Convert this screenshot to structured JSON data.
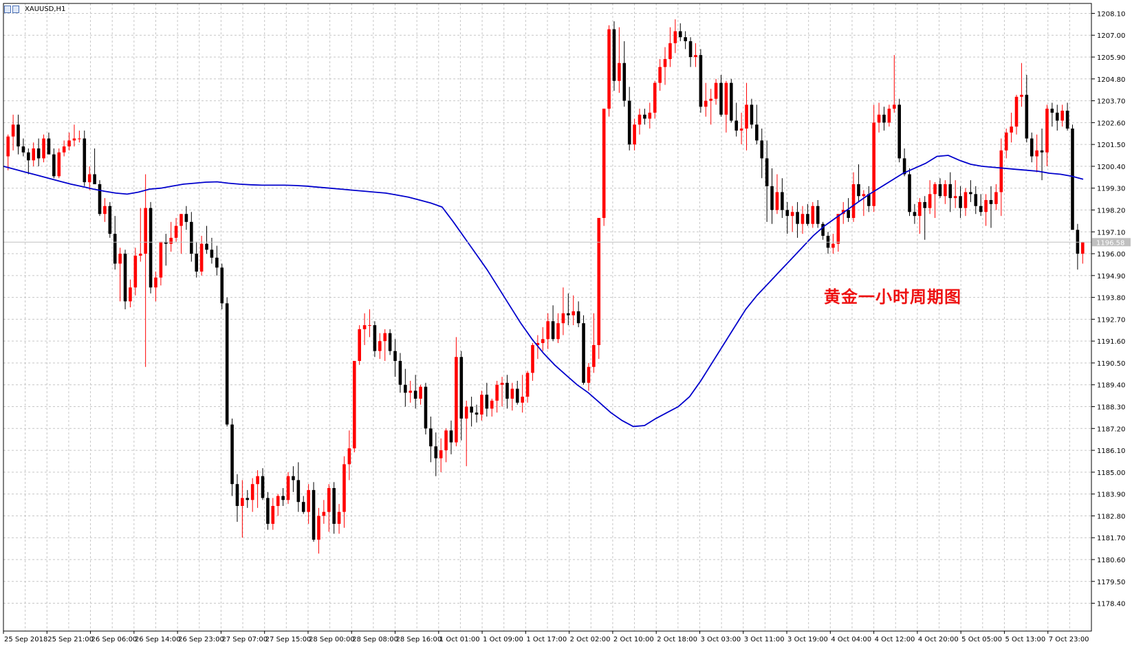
{
  "window": {
    "title": "XAUUSD,H1"
  },
  "annotation": "黄金一小时周期图",
  "colors": {
    "bull": "#ff0000",
    "bear": "#000000",
    "ma": "#0000cc",
    "grid": "#c6c6c6",
    "price_tag_bg": "#c0c0c0"
  },
  "chart_data": {
    "type": "candlestick",
    "symbol": "XAUUSD",
    "timeframe": "H1",
    "ylim": [
      1177.0,
      1208.6
    ],
    "yticks": [
      "1208.10",
      "1207.00",
      "1205.90",
      "1204.80",
      "1203.70",
      "1202.60",
      "1201.50",
      "1200.40",
      "1199.30",
      "1198.20",
      "1197.10",
      "1196.00",
      "1194.90",
      "1193.80",
      "1192.70",
      "1191.60",
      "1190.50",
      "1189.40",
      "1188.30",
      "1187.20",
      "1186.10",
      "1185.00",
      "1183.90",
      "1182.80",
      "1181.70",
      "1180.60",
      "1179.50",
      "1178.40"
    ],
    "xticks": [
      "25 Sep 2018",
      "25 Sep 21:00",
      "26 Sep 06:00",
      "26 Sep 14:00",
      "26 Sep 23:00",
      "27 Sep 07:00",
      "27 Sep 15:00",
      "28 Sep 00:00",
      "28 Sep 08:00",
      "28 Sep 16:00",
      "1 Oct 01:00",
      "1 Oct 09:00",
      "1 Oct 17:00",
      "2 Oct 02:00",
      "2 Oct 10:00",
      "2 Oct 18:00",
      "3 Oct 03:00",
      "3 Oct 11:00",
      "3 Oct 19:00",
      "4 Oct 04:00",
      "4 Oct 12:00",
      "4 Oct 20:00",
      "5 Oct 05:00",
      "5 Oct 13:00",
      "7 Oct 23:00"
    ],
    "current_price": "1196.58",
    "current_price_value": 1196.58,
    "candles_ohlc": [
      [
        1200.9,
        1202.0,
        1200.2,
        1201.9
      ],
      [
        1201.9,
        1203.0,
        1201.2,
        1202.5
      ],
      [
        1202.5,
        1203.0,
        1201.0,
        1201.4
      ],
      [
        1201.4,
        1201.8,
        1200.9,
        1201.1
      ],
      [
        1201.1,
        1201.3,
        1200.0,
        1200.7
      ],
      [
        1200.7,
        1201.6,
        1200.4,
        1201.3
      ],
      [
        1201.3,
        1201.8,
        1200.4,
        1200.8
      ],
      [
        1200.8,
        1202.0,
        1200.6,
        1201.8
      ],
      [
        1201.8,
        1202.1,
        1201.0,
        1201.0
      ],
      [
        1201.0,
        1201.3,
        1199.8,
        1199.9
      ],
      [
        1199.9,
        1201.3,
        1199.8,
        1201.1
      ],
      [
        1201.1,
        1201.7,
        1200.9,
        1201.4
      ],
      [
        1201.4,
        1202.1,
        1201.2,
        1201.7
      ],
      [
        1201.7,
        1202.5,
        1201.4,
        1201.8
      ],
      [
        1201.8,
        1202.2,
        1201.6,
        1201.8
      ],
      [
        1201.8,
        1202.2,
        1199.4,
        1199.6
      ],
      [
        1199.6,
        1200.4,
        1199.2,
        1200.0
      ],
      [
        1200.0,
        1201.3,
        1199.6,
        1199.5
      ],
      [
        1199.5,
        1199.7,
        1197.9,
        1198.0
      ],
      [
        1198.0,
        1198.8,
        1197.6,
        1198.4
      ],
      [
        1198.4,
        1198.6,
        1196.8,
        1197.0
      ],
      [
        1197.0,
        1197.9,
        1195.2,
        1195.5
      ],
      [
        1195.5,
        1196.3,
        1193.6,
        1196.0
      ],
      [
        1196.0,
        1196.2,
        1193.2,
        1193.6
      ],
      [
        1193.6,
        1194.7,
        1193.3,
        1194.3
      ],
      [
        1194.3,
        1196.3,
        1193.9,
        1195.9
      ],
      [
        1195.9,
        1198.3,
        1195.6,
        1196.0
      ],
      [
        1196.0,
        1200.0,
        1190.3,
        1198.3
      ],
      [
        1198.3,
        1198.6,
        1194.0,
        1194.3
      ],
      [
        1194.3,
        1195.1,
        1193.6,
        1194.8
      ],
      [
        1194.8,
        1196.6,
        1194.4,
        1196.6
      ],
      [
        1196.6,
        1197.0,
        1195.4,
        1196.5
      ],
      [
        1196.5,
        1197.6,
        1196.1,
        1196.8
      ],
      [
        1196.8,
        1197.8,
        1196.6,
        1197.4
      ],
      [
        1197.4,
        1198.0,
        1196.0,
        1198.0
      ],
      [
        1198.0,
        1198.4,
        1197.2,
        1197.6
      ],
      [
        1197.6,
        1198.1,
        1195.6,
        1196.0
      ],
      [
        1196.0,
        1196.6,
        1194.8,
        1195.1
      ],
      [
        1195.1,
        1196.9,
        1194.9,
        1196.5
      ],
      [
        1196.5,
        1197.4,
        1196.0,
        1196.2
      ],
      [
        1196.2,
        1196.8,
        1195.5,
        1195.8
      ],
      [
        1195.8,
        1196.4,
        1194.9,
        1195.3
      ],
      [
        1195.3,
        1195.5,
        1193.2,
        1193.5
      ],
      [
        1193.5,
        1193.8,
        1187.3,
        1187.4
      ],
      [
        1187.4,
        1187.7,
        1183.8,
        1184.4
      ],
      [
        1184.4,
        1184.9,
        1182.5,
        1183.3
      ],
      [
        1183.3,
        1184.6,
        1181.7,
        1183.7
      ],
      [
        1183.7,
        1184.1,
        1183.2,
        1183.6
      ],
      [
        1183.6,
        1184.7,
        1183.0,
        1184.4
      ],
      [
        1184.4,
        1185.1,
        1183.2,
        1184.8
      ],
      [
        1184.8,
        1185.2,
        1183.6,
        1183.7
      ],
      [
        1183.7,
        1184.0,
        1182.1,
        1182.4
      ],
      [
        1182.4,
        1183.7,
        1182.1,
        1183.3
      ],
      [
        1183.3,
        1183.9,
        1182.8,
        1183.8
      ],
      [
        1183.8,
        1184.2,
        1183.3,
        1183.6
      ],
      [
        1183.6,
        1185.0,
        1183.4,
        1184.8
      ],
      [
        1184.8,
        1185.3,
        1184.0,
        1184.6
      ],
      [
        1184.6,
        1185.5,
        1183.0,
        1183.5
      ],
      [
        1183.5,
        1183.8,
        1182.9,
        1183.0
      ],
      [
        1183.0,
        1184.4,
        1182.4,
        1184.1
      ],
      [
        1184.1,
        1184.5,
        1181.5,
        1181.6
      ],
      [
        1181.6,
        1183.2,
        1180.9,
        1182.8
      ],
      [
        1182.8,
        1183.6,
        1182.4,
        1183.0
      ],
      [
        1183.0,
        1184.4,
        1182.0,
        1184.2
      ],
      [
        1184.2,
        1184.5,
        1181.9,
        1182.4
      ],
      [
        1182.4,
        1183.4,
        1181.9,
        1183.0
      ],
      [
        1183.0,
        1185.8,
        1182.2,
        1185.4
      ],
      [
        1185.4,
        1187.1,
        1184.6,
        1186.2
      ],
      [
        1186.2,
        1190.6,
        1186.0,
        1190.6
      ],
      [
        1190.6,
        1192.4,
        1190.4,
        1192.2
      ],
      [
        1192.2,
        1193.0,
        1191.4,
        1192.4
      ],
      [
        1192.4,
        1193.2,
        1191.8,
        1192.4
      ],
      [
        1192.4,
        1192.6,
        1190.8,
        1191.1
      ],
      [
        1191.1,
        1192.0,
        1190.7,
        1191.6
      ],
      [
        1191.6,
        1192.2,
        1190.6,
        1192.0
      ],
      [
        1192.0,
        1192.2,
        1190.9,
        1191.1
      ],
      [
        1191.1,
        1191.7,
        1189.8,
        1190.6
      ],
      [
        1190.6,
        1191.0,
        1189.0,
        1189.4
      ],
      [
        1189.4,
        1190.2,
        1188.3,
        1189.0
      ],
      [
        1189.0,
        1189.6,
        1188.5,
        1189.1
      ],
      [
        1189.1,
        1189.9,
        1188.2,
        1188.7
      ],
      [
        1188.7,
        1189.4,
        1188.4,
        1189.3
      ],
      [
        1189.3,
        1189.5,
        1186.9,
        1187.2
      ],
      [
        1187.2,
        1187.8,
        1185.5,
        1186.3
      ],
      [
        1186.3,
        1187.0,
        1184.8,
        1185.7
      ],
      [
        1185.7,
        1186.7,
        1185.0,
        1186.1
      ],
      [
        1186.1,
        1187.2,
        1185.5,
        1187.1
      ],
      [
        1187.1,
        1187.6,
        1185.9,
        1186.5
      ],
      [
        1186.5,
        1191.8,
        1186.3,
        1190.8
      ],
      [
        1190.8,
        1191.1,
        1186.6,
        1187.7
      ],
      [
        1187.7,
        1188.6,
        1185.3,
        1188.3
      ],
      [
        1188.3,
        1188.8,
        1187.3,
        1188.0
      ],
      [
        1188.0,
        1188.4,
        1187.5,
        1187.9
      ],
      [
        1187.9,
        1189.1,
        1187.6,
        1188.9
      ],
      [
        1188.9,
        1189.5,
        1187.8,
        1188.2
      ],
      [
        1188.2,
        1188.7,
        1187.8,
        1188.6
      ],
      [
        1188.6,
        1189.6,
        1188.0,
        1189.4
      ],
      [
        1189.4,
        1189.8,
        1188.3,
        1189.5
      ],
      [
        1189.5,
        1189.9,
        1188.2,
        1188.7
      ],
      [
        1188.7,
        1189.5,
        1188.1,
        1189.2
      ],
      [
        1189.2,
        1189.6,
        1188.4,
        1188.5
      ],
      [
        1188.5,
        1189.9,
        1188.0,
        1188.8
      ],
      [
        1188.8,
        1190.1,
        1188.5,
        1190.0
      ],
      [
        1190.0,
        1191.5,
        1189.6,
        1191.4
      ],
      [
        1191.4,
        1191.9,
        1190.7,
        1191.5
      ],
      [
        1191.5,
        1192.3,
        1191.1,
        1191.7
      ],
      [
        1191.7,
        1193.0,
        1191.2,
        1192.6
      ],
      [
        1192.6,
        1193.4,
        1191.6,
        1191.7
      ],
      [
        1191.7,
        1193.0,
        1191.5,
        1192.5
      ],
      [
        1192.5,
        1194.3,
        1191.9,
        1193.0
      ],
      [
        1193.0,
        1194.0,
        1192.4,
        1192.9
      ],
      [
        1192.9,
        1193.9,
        1192.4,
        1193.1
      ],
      [
        1193.1,
        1193.6,
        1192.3,
        1192.5
      ],
      [
        1192.5,
        1192.9,
        1189.4,
        1189.5
      ],
      [
        1189.5,
        1190.5,
        1189.1,
        1190.3
      ],
      [
        1190.3,
        1193.0,
        1190.0,
        1191.4
      ],
      [
        1191.4,
        1197.8,
        1190.7,
        1197.8
      ],
      [
        1197.8,
        1203.3,
        1197.4,
        1203.3
      ],
      [
        1203.3,
        1207.5,
        1202.9,
        1207.3
      ],
      [
        1207.3,
        1207.7,
        1204.2,
        1204.7
      ],
      [
        1204.7,
        1207.4,
        1204.1,
        1205.6
      ],
      [
        1205.6,
        1206.7,
        1203.4,
        1203.7
      ],
      [
        1203.7,
        1204.4,
        1201.2,
        1201.5
      ],
      [
        1201.5,
        1202.8,
        1201.2,
        1202.5
      ],
      [
        1202.5,
        1203.3,
        1202.0,
        1203.0
      ],
      [
        1203.0,
        1203.3,
        1202.5,
        1202.8
      ],
      [
        1202.8,
        1203.6,
        1202.3,
        1203.1
      ],
      [
        1203.1,
        1204.7,
        1202.8,
        1204.6
      ],
      [
        1204.6,
        1205.8,
        1204.2,
        1205.4
      ],
      [
        1205.4,
        1206.4,
        1204.5,
        1205.8
      ],
      [
        1205.8,
        1207.4,
        1205.4,
        1206.6
      ],
      [
        1206.6,
        1207.8,
        1206.1,
        1207.2
      ],
      [
        1207.2,
        1207.6,
        1206.7,
        1206.9
      ],
      [
        1206.9,
        1207.2,
        1206.3,
        1206.7
      ],
      [
        1206.7,
        1206.9,
        1205.4,
        1205.9
      ],
      [
        1205.9,
        1206.6,
        1205.4,
        1206.0
      ],
      [
        1206.0,
        1206.3,
        1203.1,
        1203.4
      ],
      [
        1203.4,
        1204.6,
        1202.9,
        1203.7
      ],
      [
        1203.7,
        1204.3,
        1202.5,
        1203.8
      ],
      [
        1203.8,
        1204.8,
        1203.5,
        1204.6
      ],
      [
        1204.6,
        1205.0,
        1202.9,
        1203.0
      ],
      [
        1203.0,
        1204.7,
        1202.1,
        1204.6
      ],
      [
        1204.6,
        1204.8,
        1202.6,
        1202.7
      ],
      [
        1202.7,
        1203.6,
        1201.9,
        1202.2
      ],
      [
        1202.2,
        1203.1,
        1201.5,
        1202.3
      ],
      [
        1202.3,
        1204.6,
        1201.2,
        1203.5
      ],
      [
        1203.5,
        1203.8,
        1202.3,
        1202.5
      ],
      [
        1202.5,
        1203.5,
        1201.5,
        1201.7
      ],
      [
        1201.7,
        1202.3,
        1199.8,
        1200.8
      ],
      [
        1200.8,
        1201.7,
        1197.6,
        1199.4
      ],
      [
        1199.4,
        1200.3,
        1197.5,
        1198.2
      ],
      [
        1198.2,
        1200.0,
        1198.0,
        1199.1
      ],
      [
        1199.1,
        1199.8,
        1197.8,
        1198.2
      ],
      [
        1198.2,
        1198.6,
        1197.0,
        1197.9
      ],
      [
        1197.9,
        1198.4,
        1197.1,
        1198.1
      ],
      [
        1198.1,
        1198.6,
        1196.8,
        1197.5
      ],
      [
        1197.5,
        1198.4,
        1197.0,
        1198.0
      ],
      [
        1198.0,
        1198.5,
        1197.4,
        1197.5
      ],
      [
        1197.5,
        1198.6,
        1197.3,
        1198.4
      ],
      [
        1198.4,
        1198.7,
        1197.3,
        1197.5
      ],
      [
        1197.5,
        1197.6,
        1196.7,
        1196.9
      ],
      [
        1196.9,
        1197.1,
        1196.0,
        1196.3
      ],
      [
        1196.3,
        1197.0,
        1196.0,
        1196.5
      ],
      [
        1196.5,
        1198.0,
        1196.1,
        1198.0
      ],
      [
        1198.0,
        1198.6,
        1197.5,
        1198.2
      ],
      [
        1198.2,
        1198.8,
        1197.6,
        1197.8
      ],
      [
        1197.8,
        1200.1,
        1197.6,
        1199.5
      ],
      [
        1199.5,
        1200.5,
        1198.6,
        1198.9
      ],
      [
        1198.9,
        1199.2,
        1197.9,
        1199.0
      ],
      [
        1199.0,
        1199.4,
        1198.1,
        1198.4
      ],
      [
        1198.4,
        1203.5,
        1198.1,
        1202.6
      ],
      [
        1202.6,
        1203.6,
        1202.1,
        1203.0
      ],
      [
        1203.0,
        1203.4,
        1202.2,
        1202.6
      ],
      [
        1202.6,
        1203.5,
        1202.4,
        1203.3
      ],
      [
        1203.3,
        1206.0,
        1203.1,
        1203.5
      ],
      [
        1203.5,
        1203.8,
        1200.6,
        1200.8
      ],
      [
        1200.8,
        1201.3,
        1199.9,
        1200.0
      ],
      [
        1200.0,
        1200.3,
        1197.9,
        1198.1
      ],
      [
        1198.1,
        1198.5,
        1197.5,
        1197.9
      ],
      [
        1197.9,
        1198.8,
        1197.0,
        1198.6
      ],
      [
        1198.6,
        1198.9,
        1196.7,
        1198.3
      ],
      [
        1198.3,
        1199.7,
        1198.0,
        1199.0
      ],
      [
        1199.0,
        1199.6,
        1197.8,
        1199.5
      ],
      [
        1199.5,
        1199.8,
        1198.8,
        1198.9
      ],
      [
        1198.9,
        1199.7,
        1198.5,
        1199.5
      ],
      [
        1199.5,
        1200.1,
        1198.1,
        1198.8
      ],
      [
        1198.8,
        1199.7,
        1198.3,
        1198.9
      ],
      [
        1198.9,
        1199.4,
        1197.8,
        1198.3
      ],
      [
        1198.3,
        1199.3,
        1197.9,
        1199.1
      ],
      [
        1199.1,
        1199.7,
        1198.6,
        1199.0
      ],
      [
        1199.0,
        1199.4,
        1198.0,
        1198.4
      ],
      [
        1198.4,
        1199.0,
        1197.9,
        1198.1
      ],
      [
        1198.1,
        1199.0,
        1197.4,
        1198.7
      ],
      [
        1198.7,
        1199.4,
        1197.3,
        1198.5
      ],
      [
        1198.5,
        1199.5,
        1198.2,
        1199.1
      ],
      [
        1199.1,
        1201.8,
        1197.9,
        1201.2
      ],
      [
        1201.2,
        1202.3,
        1200.8,
        1202.1
      ],
      [
        1202.1,
        1203.1,
        1201.6,
        1202.4
      ],
      [
        1202.4,
        1204.0,
        1202.0,
        1203.9
      ],
      [
        1203.9,
        1205.6,
        1203.4,
        1204.0
      ],
      [
        1204.0,
        1205.0,
        1201.6,
        1201.8
      ],
      [
        1201.8,
        1202.1,
        1200.6,
        1200.9
      ],
      [
        1200.9,
        1202.0,
        1200.1,
        1201.2
      ],
      [
        1201.2,
        1202.3,
        1199.7,
        1201.1
      ],
      [
        1201.1,
        1203.5,
        1200.4,
        1203.3
      ],
      [
        1203.3,
        1203.6,
        1202.4,
        1203.1
      ],
      [
        1203.1,
        1203.5,
        1202.2,
        1202.7
      ],
      [
        1202.7,
        1203.5,
        1202.4,
        1203.2
      ],
      [
        1203.2,
        1203.6,
        1202.2,
        1202.3
      ],
      [
        1202.3,
        1202.5,
        1199.1,
        1197.2
      ],
      [
        1197.2,
        1197.5,
        1195.2,
        1196.0
      ],
      [
        1196.0,
        1196.6,
        1195.5,
        1196.58
      ]
    ],
    "ma_series": [
      1200.4,
      1200.25,
      1200.1,
      1199.95,
      1199.8,
      1199.65,
      1199.5,
      1199.38,
      1199.25,
      1199.14,
      1199.05,
      1199.0,
      1199.1,
      1199.25,
      1199.3,
      1199.4,
      1199.5,
      1199.55,
      1199.6,
      1199.62,
      1199.55,
      1199.5,
      1199.47,
      1199.45,
      1199.45,
      1199.45,
      1199.43,
      1199.4,
      1199.35,
      1199.3,
      1199.25,
      1199.2,
      1199.15,
      1199.1,
      1199.05,
      1198.95,
      1198.85,
      1198.7,
      1198.55,
      1198.35,
      1197.6,
      1196.8,
      1196.0,
      1195.2,
      1194.3,
      1193.4,
      1192.5,
      1191.7,
      1191.0,
      1190.4,
      1189.9,
      1189.4,
      1189.0,
      1188.5,
      1188.0,
      1187.6,
      1187.3,
      1187.35,
      1187.7,
      1188.0,
      1188.3,
      1188.8,
      1189.6,
      1190.5,
      1191.4,
      1192.3,
      1193.2,
      1193.9,
      1194.5,
      1195.1,
      1195.7,
      1196.3,
      1196.9,
      1197.4,
      1197.8,
      1198.2,
      1198.6,
      1199.0,
      1199.35,
      1199.7,
      1200.05,
      1200.3,
      1200.55,
      1200.9,
      1200.95,
      1200.7,
      1200.5,
      1200.4,
      1200.35,
      1200.3,
      1200.25,
      1200.2,
      1200.15,
      1200.05,
      1200.0,
      1199.9,
      1199.75
    ]
  }
}
